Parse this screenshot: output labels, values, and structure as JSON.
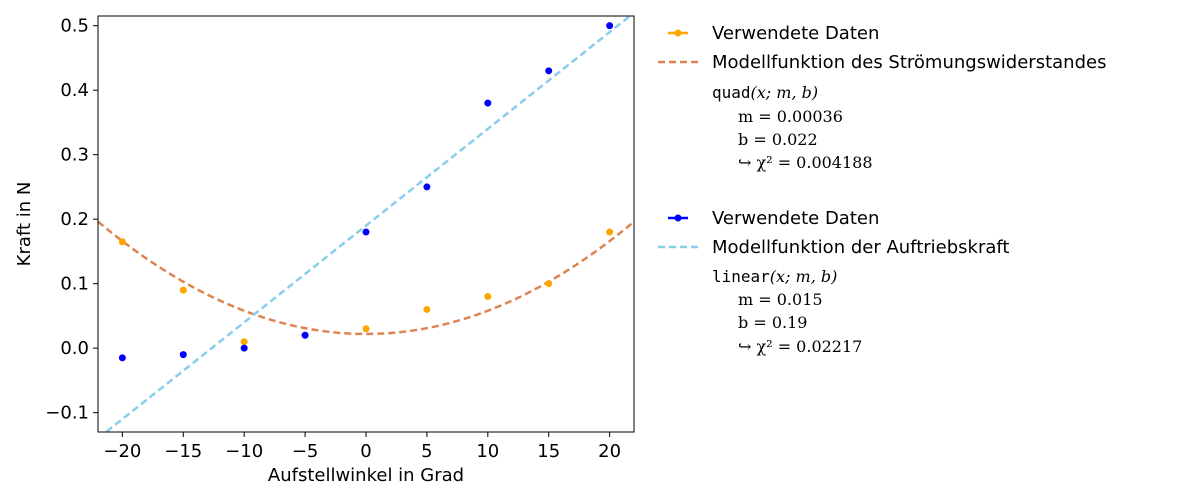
{
  "chart_data": {
    "type": "scatter",
    "xlabel": "Aufstellwinkel in Grad",
    "ylabel": "Kraft in N",
    "xlim": [
      -22,
      22
    ],
    "ylim": [
      -0.13,
      0.515
    ],
    "xticks": [
      -20,
      -15,
      -10,
      -5,
      0,
      5,
      10,
      15,
      20
    ],
    "xtick_labels": [
      "−20",
      "−15",
      "−10",
      "−5",
      "0",
      "5",
      "10",
      "15",
      "20"
    ],
    "yticks": [
      -0.1,
      0.0,
      0.1,
      0.2,
      0.3,
      0.4,
      0.5
    ],
    "ytick_labels": [
      "−0.1",
      "0.0",
      "0.1",
      "0.2",
      "0.3",
      "0.4",
      "0.5"
    ],
    "grid": false,
    "legend_position": "outside-right",
    "groups": [
      {
        "id": "drag",
        "data_color": "#ffa500",
        "model_color": "#dd8452",
        "data_label": "Verwendete Daten",
        "model_label": "Modellfunktion des Strömungswiderstandes",
        "model_type": "quadratic",
        "points": [
          {
            "x": -20,
            "y": 0.165
          },
          {
            "x": -15,
            "y": 0.09
          },
          {
            "x": -10,
            "y": 0.01
          },
          {
            "x": -5,
            "y": 0.02
          },
          {
            "x": 0,
            "y": 0.03
          },
          {
            "x": 5,
            "y": 0.06
          },
          {
            "x": 10,
            "y": 0.08
          },
          {
            "x": 15,
            "y": 0.1
          },
          {
            "x": 20,
            "y": 0.18
          }
        ],
        "params": {
          "m": 0.00036,
          "b": 0.022
        },
        "fit_text": {
          "func_name": "quad",
          "func_args": "(x; m, b)",
          "m_line": "m = 0.00036",
          "b_line": "b = 0.022",
          "chi_line": "↪ χ² = 0.004188"
        }
      },
      {
        "id": "lift",
        "data_color": "#0000ff",
        "model_color": "#87ceeb",
        "data_label": "Verwendete Daten",
        "model_label": "Modellfunktion der Auftriebskraft",
        "model_type": "linear",
        "points": [
          {
            "x": -20,
            "y": -0.015
          },
          {
            "x": -15,
            "y": -0.01
          },
          {
            "x": -10,
            "y": 0.0
          },
          {
            "x": -5,
            "y": 0.02
          },
          {
            "x": 0,
            "y": 0.18
          },
          {
            "x": 5,
            "y": 0.25
          },
          {
            "x": 10,
            "y": 0.38
          },
          {
            "x": 15,
            "y": 0.43
          },
          {
            "x": 20,
            "y": 0.5
          }
        ],
        "params": {
          "m": 0.015,
          "b": 0.19
        },
        "fit_text": {
          "func_name": "linear",
          "func_args": "(x; m, b)",
          "m_line": "m = 0.015",
          "b_line": "b = 0.19",
          "chi_line": "↪ χ² = 0.02217"
        }
      }
    ]
  }
}
